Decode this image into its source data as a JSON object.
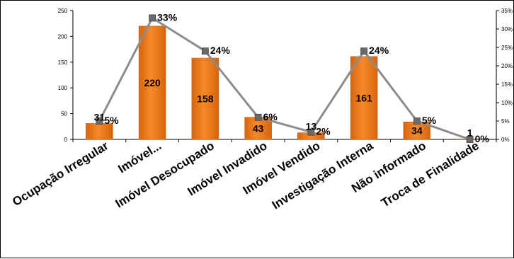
{
  "chart_data": {
    "type": "bar",
    "categories": [
      "Ocupação Irregular",
      "Imóvel...",
      "Imóvel Desocupado",
      "Imóvel Invadido",
      "Imóvel Vendido",
      "Investigação Interna",
      "Não informado",
      "Troca de Finalidade"
    ],
    "series": [
      {
        "type": "bar",
        "axis": "left",
        "values": [
          31,
          220,
          158,
          43,
          13,
          161,
          34,
          1
        ],
        "labels": [
          "31",
          "220",
          "158",
          "43",
          "13",
          "161",
          "34",
          "1"
        ]
      },
      {
        "type": "line",
        "axis": "right",
        "values": [
          5,
          33,
          24,
          6,
          2,
          24,
          5,
          0
        ],
        "labels": [
          "5%",
          "33%",
          "24%",
          "6%",
          "2%",
          "24%",
          "5%",
          "0%"
        ]
      }
    ],
    "y_left": {
      "min": 0,
      "max": 250,
      "ticks": [
        "0",
        "50",
        "100",
        "150",
        "200",
        "250"
      ]
    },
    "y_right": {
      "min": 0,
      "max": 35,
      "ticks": [
        "0%",
        "5%",
        "10%",
        "15%",
        "20%",
        "25%",
        "30%",
        "35%"
      ]
    },
    "grid": false,
    "legend": "none",
    "colors": {
      "bar": "#f07a18",
      "bar_dark": "#c85a08",
      "line": "#8c8c8c",
      "marker": "#6a6a6a"
    }
  }
}
